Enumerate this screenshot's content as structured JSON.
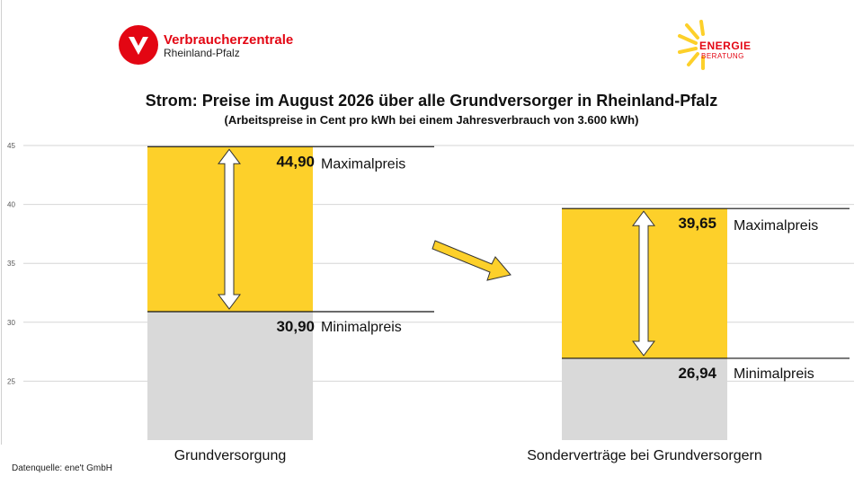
{
  "logos": {
    "vz_line1": "Verbraucherzentrale",
    "vz_line2": "Rheinland-Pfalz",
    "eb_line1": "ENERGIE",
    "eb_line2": "BERATUNG"
  },
  "source": "Datenquelle: ene't GmbH",
  "colors": {
    "max_fill": "#fdd02a",
    "min_fill": "#d9d9d9",
    "brand_red": "#e30613",
    "sun_yellow": "#fdd02a"
  },
  "chart_data": {
    "type": "bar",
    "title": "Strom: Preise im August 2026 über alle Grundversorger in Rheinland-Pfalz",
    "subtitle": "(Arbeitspreise in Cent pro kWh bei einem Jahresverbrauch von 3.600 kWh)",
    "categories": [
      "Grundversorgung",
      "Sonderverträge bei Grundversorgern"
    ],
    "series": [
      {
        "name": "Minimalpreis",
        "values": [
          30.9,
          26.94
        ],
        "labels": [
          "30,90",
          "26,94"
        ]
      },
      {
        "name": "Maximalpreis",
        "values": [
          44.9,
          39.65
        ],
        "labels": [
          "44,90",
          "39,65"
        ]
      }
    ],
    "range_labels": {
      "max": "Maximalpreis",
      "min": "Minimalpreis"
    },
    "yticks": [
      25,
      30,
      35,
      40,
      45
    ],
    "ytick_labels": [
      "25",
      "30",
      "35",
      "40",
      "45"
    ],
    "ylim": [
      20,
      45
    ],
    "grid": true,
    "legend": "none"
  }
}
